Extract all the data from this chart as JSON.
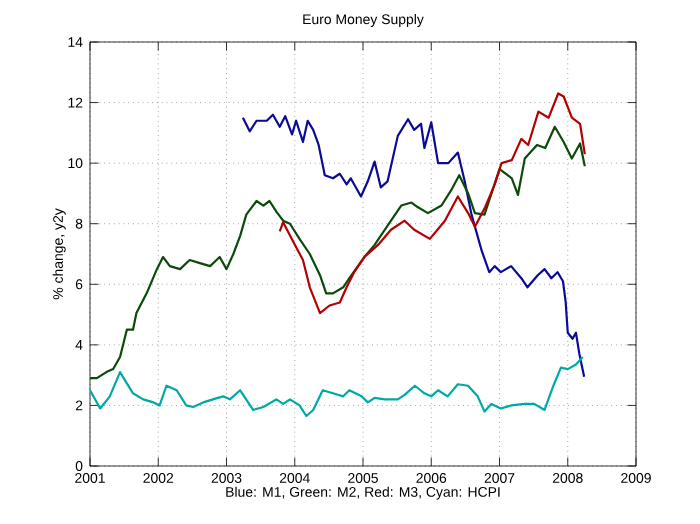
{
  "chart_data": {
    "type": "line",
    "title": "Euro Money Supply",
    "xlabel": "Blue: M1, Green: M2, Red: M3, Cyan: HCPI",
    "ylabel": "% change, y2y",
    "xlim": [
      2001,
      2009
    ],
    "xticks": [
      2001,
      2002,
      2003,
      2004,
      2005,
      2006,
      2007,
      2008,
      2009
    ],
    "ylim": [
      0,
      14
    ],
    "yticks": [
      0,
      2,
      4,
      6,
      8,
      10,
      12,
      14
    ],
    "grid": true,
    "marker": "none",
    "line_style": "solid",
    "series": [
      {
        "color": "#0a0a96",
        "x": [
          2003.24,
          2003.34,
          2003.44,
          2003.59,
          2003.68,
          2003.78,
          2003.86,
          2003.96,
          2004.02,
          2004.12,
          2004.19,
          2004.27,
          2004.35,
          2004.44,
          2004.56,
          2004.66,
          2004.76,
          2004.82,
          2004.97,
          2005.07,
          2005.17,
          2005.26,
          2005.36,
          2005.51,
          2005.66,
          2005.75,
          2005.85,
          2005.9,
          2006.0,
          2006.1,
          2006.25,
          2006.39,
          2006.49,
          2006.59,
          2006.74,
          2006.85,
          2006.93,
          2007.02,
          2007.17,
          2007.32,
          2007.41,
          2007.56,
          2007.66,
          2007.76,
          2007.85,
          2007.93,
          2007.97,
          2008.0,
          2008.07,
          2008.12,
          2008.17,
          2008.24
        ],
        "values": [
          11.5,
          11.05,
          11.4,
          11.4,
          11.6,
          11.2,
          11.55,
          10.95,
          11.4,
          10.7,
          11.4,
          11.1,
          10.6,
          9.6,
          9.5,
          9.65,
          9.3,
          9.5,
          8.9,
          9.4,
          10.05,
          9.2,
          9.4,
          10.9,
          11.45,
          11.1,
          11.3,
          10.5,
          11.35,
          10.0,
          10.0,
          10.35,
          9.4,
          8.3,
          7.1,
          6.4,
          6.6,
          6.4,
          6.6,
          6.2,
          5.9,
          6.3,
          6.5,
          6.2,
          6.4,
          6.1,
          5.4,
          4.4,
          4.2,
          4.4,
          3.7,
          2.95
        ]
      },
      {
        "color": "#0b4a0b",
        "x": [
          2001.0,
          2001.1,
          2001.24,
          2001.34,
          2001.44,
          2001.54,
          2001.63,
          2001.68,
          2001.83,
          2001.98,
          2002.07,
          2002.17,
          2002.32,
          2002.46,
          2002.61,
          2002.76,
          2002.9,
          2003.0,
          2003.1,
          2003.2,
          2003.29,
          2003.44,
          2003.54,
          2003.63,
          2003.73,
          2003.83,
          2003.93,
          2004.07,
          2004.22,
          2004.37,
          2004.46,
          2004.56,
          2004.71,
          2004.8,
          2005.02,
          2005.17,
          2005.41,
          2005.56,
          2005.71,
          2005.8,
          2005.95,
          2006.15,
          2006.29,
          2006.41,
          2006.54,
          2006.64,
          2006.78,
          2007.0,
          2007.18,
          2007.27,
          2007.37,
          2007.55,
          2007.67,
          2007.81,
          2007.94,
          2008.06,
          2008.18,
          2008.25
        ],
        "values": [
          2.9,
          2.9,
          3.1,
          3.2,
          3.6,
          4.5,
          4.5,
          5.05,
          5.7,
          6.5,
          6.9,
          6.6,
          6.5,
          6.8,
          6.7,
          6.6,
          6.9,
          6.5,
          7.0,
          7.6,
          8.3,
          8.75,
          8.6,
          8.75,
          8.4,
          8.1,
          8.0,
          7.5,
          7.0,
          6.3,
          5.7,
          5.7,
          5.9,
          6.2,
          6.9,
          7.3,
          8.1,
          8.6,
          8.7,
          8.55,
          8.35,
          8.6,
          9.1,
          9.6,
          9.0,
          8.35,
          8.3,
          9.8,
          9.5,
          8.95,
          10.15,
          10.6,
          10.5,
          11.2,
          10.7,
          10.15,
          10.65,
          9.9
        ]
      },
      {
        "color": "#b40000",
        "x": [
          2003.78,
          2003.83,
          2003.98,
          2004.12,
          2004.22,
          2004.37,
          2004.51,
          2004.66,
          2004.76,
          2004.87,
          2005.02,
          2005.22,
          2005.41,
          2005.61,
          2005.75,
          2005.98,
          2006.2,
          2006.39,
          2006.54,
          2006.64,
          2006.78,
          2006.93,
          2007.03,
          2007.18,
          2007.32,
          2007.42,
          2007.57,
          2007.72,
          2007.86,
          2007.94,
          2008.06,
          2008.18,
          2008.25
        ],
        "values": [
          7.75,
          8.05,
          7.4,
          6.8,
          5.9,
          5.05,
          5.3,
          5.4,
          5.9,
          6.4,
          6.9,
          7.3,
          7.8,
          8.1,
          7.8,
          7.5,
          8.1,
          8.9,
          8.35,
          7.9,
          8.5,
          9.3,
          10.0,
          10.1,
          10.8,
          10.6,
          11.7,
          11.5,
          12.3,
          12.2,
          11.5,
          11.3,
          10.3
        ]
      },
      {
        "color": "#00a8a8",
        "x": [
          2001.0,
          2001.15,
          2001.29,
          2001.44,
          2001.63,
          2001.78,
          2001.93,
          2002.02,
          2002.12,
          2002.27,
          2002.41,
          2002.51,
          2002.66,
          2002.8,
          2002.95,
          2003.05,
          2003.2,
          2003.39,
          2003.54,
          2003.73,
          2003.83,
          2003.93,
          2004.07,
          2004.17,
          2004.27,
          2004.41,
          2004.56,
          2004.71,
          2004.8,
          2004.98,
          2005.07,
          2005.17,
          2005.32,
          2005.51,
          2005.61,
          2005.76,
          2005.9,
          2006.0,
          2006.1,
          2006.24,
          2006.39,
          2006.54,
          2006.68,
          2006.78,
          2006.88,
          2007.02,
          2007.17,
          2007.37,
          2007.51,
          2007.66,
          2007.78,
          2007.9,
          2008.0,
          2008.12,
          2008.22
        ],
        "values": [
          2.5,
          1.9,
          2.3,
          3.1,
          2.4,
          2.2,
          2.1,
          2.0,
          2.65,
          2.5,
          2.0,
          1.95,
          2.1,
          2.2,
          2.3,
          2.2,
          2.5,
          1.85,
          1.95,
          2.2,
          2.05,
          2.2,
          2.0,
          1.65,
          1.85,
          2.5,
          2.4,
          2.3,
          2.5,
          2.3,
          2.1,
          2.25,
          2.2,
          2.2,
          2.35,
          2.65,
          2.4,
          2.3,
          2.5,
          2.3,
          2.7,
          2.65,
          2.3,
          1.8,
          2.05,
          1.9,
          2.0,
          2.05,
          2.05,
          1.85,
          2.6,
          3.25,
          3.2,
          3.35,
          3.6
        ]
      }
    ]
  }
}
